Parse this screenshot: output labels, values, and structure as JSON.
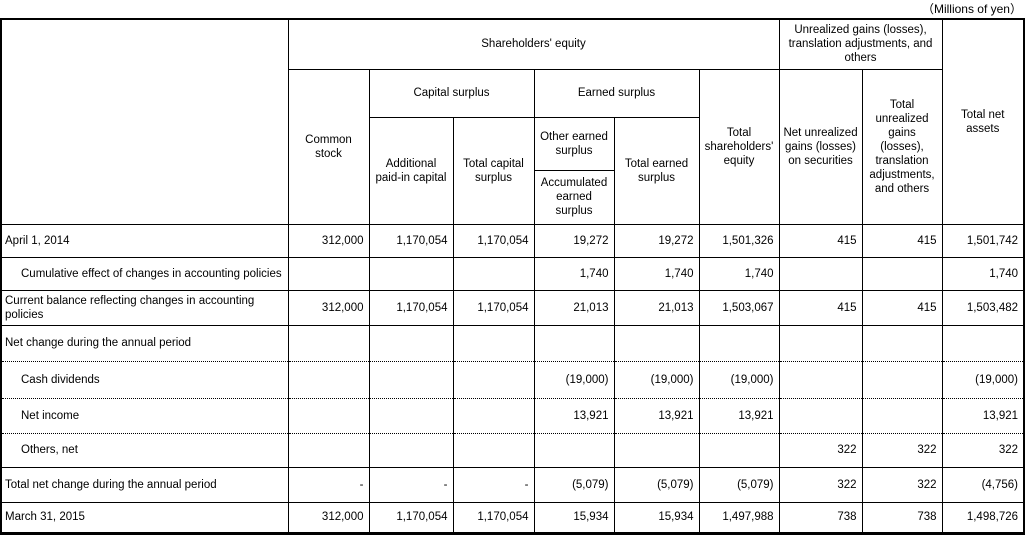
{
  "unit_label": "（Millions of yen）",
  "table": {
    "header": {
      "shareholders_equity": "Shareholders' equity",
      "unrealized_group": "Unrealized gains (losses), translation adjustments, and others",
      "total_net_assets": "Total net assets",
      "common_stock": "Common stock",
      "capital_surplus": "Capital surplus",
      "earned_surplus": "Earned surplus",
      "additional_paid_in_capital": "Additional paid-in capital",
      "total_capital_surplus": "Total capital surplus",
      "other_earned_surplus": "Other earned surplus",
      "accumulated_earned_surplus": "Accumulated earned surplus",
      "total_earned_surplus": "Total earned surplus",
      "total_shareholders_equity": "Total shareholders' equity",
      "net_unrealized_gains_securities": "Net unrealized gains (losses) on securities",
      "total_unrealized_gains": "Total unrealized gains (losses), translation adjustments, and others"
    },
    "rows": [
      {
        "label": "April 1, 2014",
        "indent": false,
        "values": [
          "312,000",
          "1,170,054",
          "1,170,054",
          "19,272",
          "19,272",
          "1,501,326",
          "415",
          "415",
          "1,501,742"
        ]
      },
      {
        "label": "Cumulative effect of changes in accounting policies",
        "indent": true,
        "values": [
          "",
          "",
          "",
          "1,740",
          "1,740",
          "1,740",
          "",
          "",
          "1,740"
        ]
      },
      {
        "label": "Current balance reflecting changes in accounting policies",
        "indent": false,
        "values": [
          "312,000",
          "1,170,054",
          "1,170,054",
          "21,013",
          "21,013",
          "1,503,067",
          "415",
          "415",
          "1,503,482"
        ]
      },
      {
        "label": "Net change during the annual period",
        "indent": false,
        "values": [
          "",
          "",
          "",
          "",
          "",
          "",
          "",
          "",
          ""
        ]
      },
      {
        "label": "Cash dividends",
        "indent": true,
        "values": [
          "",
          "",
          "",
          "(19,000)",
          "(19,000)",
          "(19,000)",
          "",
          "",
          "(19,000)"
        ]
      },
      {
        "label": "Net income",
        "indent": true,
        "values": [
          "",
          "",
          "",
          "13,921",
          "13,921",
          "13,921",
          "",
          "",
          "13,921"
        ]
      },
      {
        "label": "Others, net",
        "indent": true,
        "values": [
          "",
          "",
          "",
          "",
          "",
          "",
          "322",
          "322",
          "322"
        ]
      },
      {
        "label": "Total net change during the annual period",
        "indent": false,
        "values": [
          "-",
          "-",
          "-",
          "(5,079)",
          "(5,079)",
          "(5,079)",
          "322",
          "322",
          "(4,756)"
        ]
      },
      {
        "label": "March 31, 2015",
        "indent": false,
        "values": [
          "312,000",
          "1,170,054",
          "1,170,054",
          "15,934",
          "15,934",
          "1,497,988",
          "738",
          "738",
          "1,498,726"
        ]
      }
    ]
  }
}
